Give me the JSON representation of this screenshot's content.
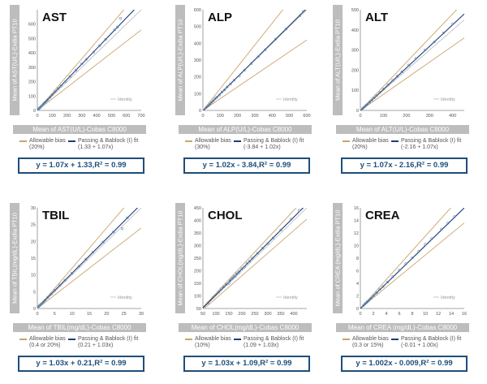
{
  "colors": {
    "identity": "#b9b9b9",
    "bias": "#c9a46a",
    "fit": "#1f3d7a",
    "points": "#6a8fb8",
    "axis_label_bg": "#bdbdbd",
    "equation": "#1f4e79"
  },
  "common": {
    "identity_label": "Identity"
  },
  "chart_data": [
    {
      "type": "scatter",
      "title": "AST",
      "ylabel": "Mean of AST(U/L)-Exdia PT10",
      "xlabel": "Mean of AST(U/L)-Cobas C8000",
      "xlim": [
        0,
        700
      ],
      "ylim": [
        0,
        700
      ],
      "xticks": [
        "0",
        "100",
        "200",
        "300",
        "400",
        "500",
        "600",
        "700"
      ],
      "yticks": [
        "0",
        "100",
        "200",
        "300",
        "400",
        "500",
        "600"
      ],
      "bias_pct": 20,
      "fit": {
        "slope": 1.07,
        "intercept": 1.33
      },
      "legend": {
        "bias": "Allowable bias",
        "bias_sub": "(20%)",
        "fit": "Passing & Bablock (I) fit",
        "fit_sub": "(1.33 + 1.07x)"
      },
      "equation": "y = 1.07x + 1.33,R² = 0.99",
      "points": [
        [
          8,
          10
        ],
        [
          12,
          14
        ],
        [
          18,
          20
        ],
        [
          22,
          24
        ],
        [
          28,
          30
        ],
        [
          35,
          38
        ],
        [
          42,
          45
        ],
        [
          50,
          55
        ],
        [
          60,
          64
        ],
        [
          70,
          74
        ],
        [
          85,
          90
        ],
        [
          100,
          108
        ],
        [
          120,
          130
        ],
        [
          140,
          152
        ],
        [
          160,
          170
        ],
        [
          190,
          200
        ],
        [
          220,
          236
        ],
        [
          260,
          278
        ],
        [
          300,
          325
        ],
        [
          330,
          355
        ],
        [
          380,
          405
        ],
        [
          420,
          450
        ],
        [
          460,
          494
        ],
        [
          520,
          560
        ],
        [
          540,
          580
        ],
        [
          560,
          640
        ]
      ]
    },
    {
      "type": "scatter",
      "title": "ALP",
      "ylabel": "Mean of ALP(U/L)-Exdia PT10",
      "xlabel": "Mean of ALP(U/L)-Cobas C8000",
      "xlim": [
        0,
        600
      ],
      "ylim": [
        0,
        600
      ],
      "xticks": [
        "0",
        "100",
        "200",
        "300",
        "400",
        "500",
        "600"
      ],
      "yticks": [
        "0",
        "100",
        "200",
        "300",
        "400",
        "500",
        "600"
      ],
      "bias_pct": 30,
      "fit": {
        "slope": 1.02,
        "intercept": -3.84
      },
      "legend": {
        "bias": "Allowable bias",
        "bias_sub": "(30%)",
        "fit": "Passing & Bablock (I) fit",
        "fit_sub": "(-3.84 + 1.02x)"
      },
      "equation": "y = 1.02x - 3.84,R² = 0.99",
      "points": [
        [
          20,
          18
        ],
        [
          30,
          28
        ],
        [
          40,
          38
        ],
        [
          50,
          48
        ],
        [
          60,
          58
        ],
        [
          70,
          70
        ],
        [
          80,
          78
        ],
        [
          95,
          92
        ],
        [
          110,
          110
        ],
        [
          125,
          122
        ],
        [
          140,
          140
        ],
        [
          160,
          158
        ],
        [
          180,
          180
        ],
        [
          210,
          205
        ],
        [
          240,
          240
        ],
        [
          280,
          280
        ],
        [
          320,
          320
        ],
        [
          360,
          362
        ],
        [
          420,
          425
        ],
        [
          480,
          485
        ],
        [
          560,
          565
        ],
        [
          580,
          590
        ]
      ]
    },
    {
      "type": "scatter",
      "title": "ALT",
      "ylabel": "Mean of ALT(U/L)-Exdia PT10",
      "xlabel": "Mean of ALT(U/L)-Cobas C8000",
      "xlim": [
        0,
        450
      ],
      "ylim": [
        0,
        500
      ],
      "xticks": [
        "0",
        "100",
        "200",
        "300",
        "400"
      ],
      "yticks": [
        "0",
        "100",
        "200",
        "300",
        "400",
        "500"
      ],
      "bias_pct": 20,
      "fit": {
        "slope": 1.07,
        "intercept": -2.16
      },
      "legend": {
        "bias": "Allowable bias",
        "bias_sub": "(20%)",
        "fit": "Passing & Bablock (I) fit",
        "fit_sub": "(-2.16 + 1.07x)"
      },
      "equation": "y = 1.07x - 2.16,R² = 0.99",
      "points": [
        [
          10,
          10
        ],
        [
          15,
          15
        ],
        [
          20,
          20
        ],
        [
          25,
          26
        ],
        [
          30,
          31
        ],
        [
          40,
          42
        ],
        [
          50,
          52
        ],
        [
          60,
          63
        ],
        [
          70,
          74
        ],
        [
          85,
          90
        ],
        [
          100,
          106
        ],
        [
          120,
          128
        ],
        [
          140,
          150
        ],
        [
          160,
          170
        ],
        [
          180,
          192
        ],
        [
          210,
          225
        ],
        [
          240,
          258
        ],
        [
          280,
          300
        ],
        [
          320,
          340
        ],
        [
          360,
          385
        ],
        [
          400,
          430
        ]
      ]
    },
    {
      "type": "scatter",
      "title": "TBIL",
      "ylabel": "Mean of TBIL(mg/dL)-Exdia PT10",
      "xlabel": "Mean of TBIL(mg/dL)-Cobas C8000",
      "xlim": [
        0,
        30
      ],
      "ylim": [
        0,
        30
      ],
      "xticks": [
        "0",
        "5",
        "10",
        "15",
        "20",
        "25",
        "30"
      ],
      "yticks": [
        "0",
        "5",
        "10",
        "15",
        "20",
        "25",
        "30"
      ],
      "bias_pct": 20,
      "fit": {
        "slope": 1.03,
        "intercept": 0.21
      },
      "legend": {
        "bias": "Allowable bias",
        "bias_sub": "(0.4 or 20%)",
        "fit": "Passing & Bablock (I) fit",
        "fit_sub": "(0.21 + 1.03x)"
      },
      "equation": "y = 1.03x + 0.21,R² = 0.99",
      "points": [
        [
          0.3,
          0.5
        ],
        [
          0.5,
          0.7
        ],
        [
          0.7,
          0.9
        ],
        [
          0.9,
          1.1
        ],
        [
          1.1,
          1.3
        ],
        [
          1.4,
          1.6
        ],
        [
          1.8,
          2.0
        ],
        [
          2.2,
          2.5
        ],
        [
          3,
          3.3
        ],
        [
          4,
          4.3
        ],
        [
          5,
          5.4
        ],
        [
          6.5,
          7
        ],
        [
          8,
          8.4
        ],
        [
          10,
          10.5
        ],
        [
          12,
          12.6
        ],
        [
          14,
          14.7
        ],
        [
          16,
          16.8
        ],
        [
          19,
          19.8
        ],
        [
          22,
          22.8
        ],
        [
          24.5,
          23.8
        ],
        [
          26,
          27
        ]
      ]
    },
    {
      "type": "scatter",
      "title": "CHOL",
      "ylabel": "Mean of CHOL(mg/dL)-Exdia PT10",
      "xlabel": "Mean of CHOL(mg/dL)-Cobas C8000",
      "xlim": [
        50,
        450
      ],
      "ylim": [
        50,
        450
      ],
      "xticks": [
        "50",
        "100",
        "150",
        "200",
        "250",
        "300",
        "350",
        "400"
      ],
      "yticks": [
        "50",
        "100",
        "150",
        "200",
        "250",
        "300",
        "350",
        "400",
        "450"
      ],
      "bias_pct": 10,
      "fit": {
        "slope": 1.03,
        "intercept": 1.09
      },
      "legend": {
        "bias": "Allowable bias",
        "bias_sub": "(10%)",
        "fit": "Passing & Bablock (I) fit",
        "fit_sub": "(1.09 + 1.03x)"
      },
      "equation": "y = 1.03x + 1.09,R² = 0.99",
      "points": [
        [
          70,
          72
        ],
        [
          90,
          95
        ],
        [
          110,
          115
        ],
        [
          120,
          128
        ],
        [
          130,
          136
        ],
        [
          140,
          146
        ],
        [
          150,
          150
        ],
        [
          155,
          160
        ],
        [
          160,
          168
        ],
        [
          165,
          170
        ],
        [
          170,
          178
        ],
        [
          175,
          178
        ],
        [
          180,
          188
        ],
        [
          185,
          190
        ],
        [
          190,
          196
        ],
        [
          200,
          208
        ],
        [
          210,
          215
        ],
        [
          220,
          230
        ],
        [
          230,
          238
        ],
        [
          240,
          250
        ],
        [
          260,
          270
        ],
        [
          280,
          290
        ],
        [
          300,
          308
        ],
        [
          320,
          330
        ],
        [
          350,
          362
        ],
        [
          390,
          405
        ],
        [
          420,
          440
        ]
      ]
    },
    {
      "type": "scatter",
      "title": "CREA",
      "ylabel": "Mean of CREA (mg/dL)-Exdia PT10",
      "xlabel": "Mean of CREA (mg/dL)-Cobas C8000",
      "xlim": [
        0,
        16
      ],
      "ylim": [
        0,
        16
      ],
      "xticks": [
        "0",
        "2",
        "4",
        "6",
        "8",
        "10",
        "12",
        "14",
        "16"
      ],
      "yticks": [
        "0",
        "2",
        "4",
        "6",
        "8",
        "10",
        "12",
        "14",
        "16"
      ],
      "bias_pct": 15,
      "fit": {
        "slope": 1.0,
        "intercept": -0.01
      },
      "legend": {
        "bias": "Allowable bias",
        "bias_sub": "(0.3 or 15%)",
        "fit": "Passing & Bablock (I) fit",
        "fit_sub": "(-0.01 + 1.00x)"
      },
      "equation": "y = 1.002x - 0.009,R² = 0.99",
      "points": [
        [
          0.5,
          0.5
        ],
        [
          0.7,
          0.75
        ],
        [
          0.9,
          0.9
        ],
        [
          1.1,
          1.1
        ],
        [
          1.3,
          1.3
        ],
        [
          1.6,
          1.6
        ],
        [
          2,
          2.05
        ],
        [
          2.5,
          2.5
        ],
        [
          3,
          3.05
        ],
        [
          3.5,
          3.5
        ],
        [
          4.2,
          4.2
        ],
        [
          5,
          5.05
        ],
        [
          6,
          6.1
        ],
        [
          7,
          7.1
        ],
        [
          8,
          8.05
        ],
        [
          9,
          9.1
        ],
        [
          10,
          10.2
        ],
        [
          11,
          11.1
        ],
        [
          12.5,
          12.6
        ],
        [
          13.5,
          13.6
        ],
        [
          14.5,
          14.6
        ]
      ]
    }
  ]
}
